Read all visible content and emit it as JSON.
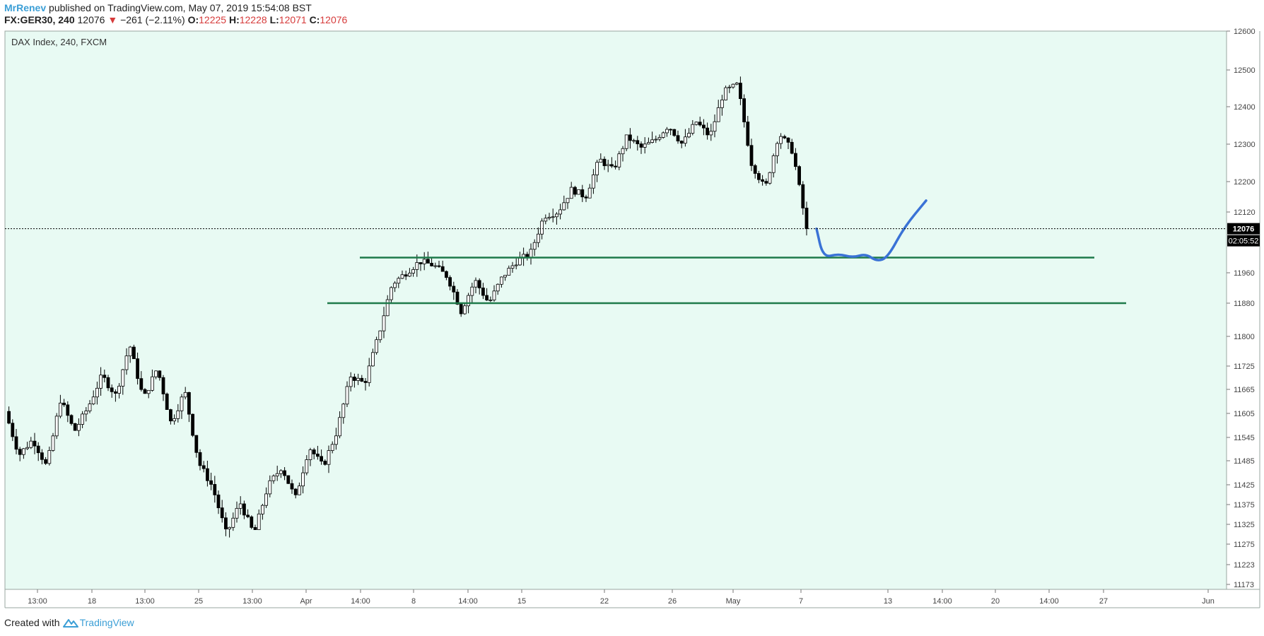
{
  "header": {
    "author": "MrRenev",
    "published": "published on TradingView.com, May 07, 2019 15:54:08 BST",
    "symbol": "FX:GER30, 240",
    "last": "12076",
    "change": "−261 (−2.11%)",
    "open_label": "O:",
    "open": "12225",
    "high_label": "H:",
    "high": "12228",
    "low_label": "L:",
    "low": "12071",
    "close_label": "C:",
    "close": "12076"
  },
  "chart_data": {
    "type": "candlestick",
    "title": "DAX Index, 240, FXCM",
    "y_axis": {
      "ticks": [
        12600,
        12500,
        12400,
        12300,
        12200,
        12120,
        11960,
        11880,
        11800,
        11725,
        11665,
        11605,
        11545,
        11485,
        11425,
        11375,
        11325,
        11275,
        11223,
        11173
      ],
      "ylim": [
        11173,
        12600
      ]
    },
    "x_axis": {
      "ticks": [
        "13:00",
        "18",
        "13:00",
        "25",
        "13:00",
        "Apr",
        "14:00",
        "8",
        "14:00",
        "15",
        "22",
        "26",
        "May",
        "7",
        "13",
        "14:00",
        "20",
        "14:00",
        "27",
        "Jun"
      ]
    },
    "price_label": {
      "value": 12076,
      "text": "12076"
    },
    "countdown": "02:05:52",
    "path": [
      11610,
      11500,
      11540,
      11470,
      11640,
      11560,
      11620,
      11700,
      11650,
      11780,
      11640,
      11720,
      11580,
      11660,
      11480,
      11420,
      11300,
      11380,
      11300,
      11420,
      11470,
      11390,
      11520,
      11470,
      11560,
      11700,
      11680,
      11800,
      11930,
      11960,
      11990,
      11980,
      11950,
      11860,
      11940,
      11880,
      11950,
      11990,
      12010,
      12110,
      12120,
      12180,
      12160,
      12260,
      12230,
      12320,
      12290,
      12310,
      12350,
      12300,
      12360,
      12320,
      12440,
      12460,
      12250,
      12180,
      12330,
      12280,
      12076
    ],
    "levels": [
      {
        "value": 12000,
        "color": "#1e7a4a"
      },
      {
        "value": 11880,
        "color": "#1e7a4a"
      }
    ],
    "projection": {
      "color": "#3a72d6",
      "points": [
        [
          12076,
          0
        ],
        [
          12000,
          0.06
        ],
        [
          12010,
          0.2
        ],
        [
          12000,
          0.33
        ],
        [
          12010,
          0.45
        ],
        [
          11990,
          0.55
        ],
        [
          12000,
          0.65
        ],
        [
          12080,
          0.8
        ],
        [
          12150,
          1
        ]
      ]
    },
    "colors": {
      "background": "#e8faf3",
      "up": "#ffffff",
      "down": "#000000",
      "wick": "#000000"
    }
  },
  "footer": {
    "created": "Created with",
    "brand": "TradingView"
  }
}
